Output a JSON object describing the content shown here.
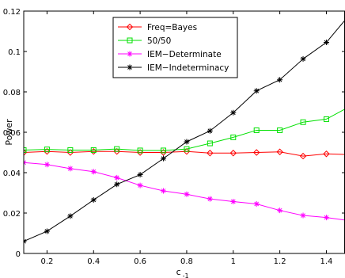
{
  "chart_data": {
    "type": "line",
    "title": "",
    "xlabel": "c",
    "xlabel_subscript": "-1",
    "ylabel": "Power",
    "xlim": [
      0.1,
      1.48
    ],
    "ylim": [
      0,
      0.12
    ],
    "xticks": [
      0.2,
      0.4,
      0.6,
      0.8,
      1,
      1.2,
      1.4
    ],
    "yticks": [
      0,
      0.02,
      0.04,
      0.06,
      0.08,
      0.1,
      0.12
    ],
    "xtick_labels": [
      "0.2",
      "0.4",
      "0.6",
      "0.8",
      "1",
      "1.2",
      "1.4"
    ],
    "ytick_labels": [
      "0",
      "0.02",
      "0.04",
      "0.06",
      "0.08",
      "0.1",
      "0.12"
    ],
    "grid": false,
    "legend_position": "top-center",
    "x": [
      0.1,
      0.2,
      0.3,
      0.4,
      0.5,
      0.6,
      0.7,
      0.8,
      0.9,
      1.0,
      1.1,
      1.2,
      1.3,
      1.4,
      1.48
    ],
    "series": [
      {
        "name": "Freq=Bayes",
        "color": "#ff0000",
        "marker": "diamond",
        "values": [
          0.05,
          0.0505,
          0.05,
          0.0505,
          0.0505,
          0.05,
          0.05,
          0.0505,
          0.0497,
          0.0497,
          0.05,
          0.0503,
          0.0482,
          0.0493,
          0.049
        ]
      },
      {
        "name": "50/50",
        "color": "#00e000",
        "marker": "square",
        "values": [
          0.0512,
          0.0515,
          0.0512,
          0.0512,
          0.0517,
          0.051,
          0.051,
          0.0517,
          0.0545,
          0.0575,
          0.061,
          0.061,
          0.065,
          0.0665,
          0.0715
        ]
      },
      {
        "name": "IEM−Determinate",
        "color": "#ff00ff",
        "marker": "star",
        "values": [
          0.045,
          0.044,
          0.042,
          0.0405,
          0.0375,
          0.0337,
          0.031,
          0.0293,
          0.027,
          0.0257,
          0.0245,
          0.0213,
          0.0188,
          0.0178,
          0.0165
        ]
      },
      {
        "name": "IEM−Indeterminacy",
        "color": "#000000",
        "marker": "star",
        "values": [
          0.006,
          0.011,
          0.0185,
          0.0265,
          0.0342,
          0.039,
          0.047,
          0.0553,
          0.0607,
          0.0697,
          0.0805,
          0.086,
          0.0963,
          0.1045,
          0.1155
        ]
      }
    ]
  }
}
